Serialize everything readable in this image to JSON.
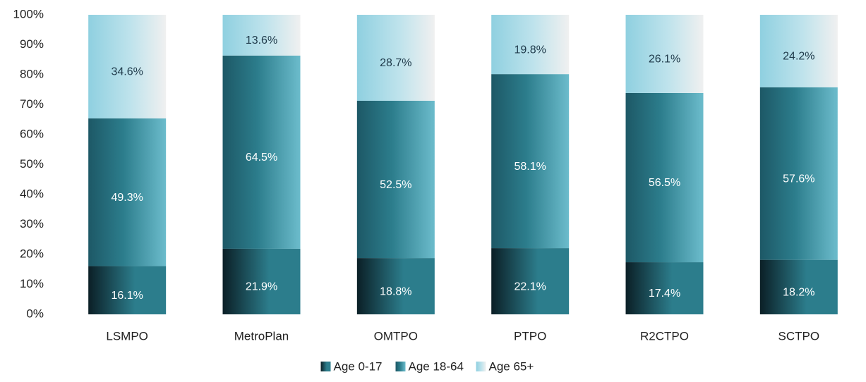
{
  "chart_data": {
    "type": "stacked_bar",
    "categories": [
      "LSMPO",
      "MetroPlan",
      "OMTPO",
      "PTPO",
      "R2CTPO",
      "SCTPO"
    ],
    "series": [
      {
        "name": "Age 0-17",
        "color": "#2c7d8c",
        "values": [
          16.1,
          21.9,
          18.8,
          22.1,
          17.4,
          18.2
        ],
        "value_labels": [
          "16.1%",
          "21.9%",
          "18.8%",
          "22.1%",
          "17.4%",
          "18.2%"
        ]
      },
      {
        "name": "Age 18-64",
        "color": "#6cbccc",
        "values": [
          49.3,
          64.5,
          52.5,
          58.1,
          56.5,
          57.6
        ],
        "value_labels": [
          "49.3%",
          "64.5%",
          "52.5%",
          "58.1%",
          "56.5%",
          "57.6%"
        ]
      },
      {
        "name": "Age 65+",
        "color": "#8fd0e0",
        "values": [
          34.6,
          13.6,
          28.7,
          19.8,
          26.1,
          24.2
        ],
        "value_labels": [
          "34.6%",
          "13.6%",
          "28.7%",
          "19.8%",
          "26.1%",
          "24.2%"
        ]
      }
    ],
    "ylim": [
      0,
      100
    ],
    "yticks": [
      {
        "value": 0,
        "label": "0%"
      },
      {
        "value": 10,
        "label": "10%"
      },
      {
        "value": 20,
        "label": "20%"
      },
      {
        "value": 30,
        "label": "30%"
      },
      {
        "value": 40,
        "label": "40%"
      },
      {
        "value": 50,
        "label": "50%"
      },
      {
        "value": 60,
        "label": "60%"
      },
      {
        "value": 70,
        "label": "70%"
      },
      {
        "value": 80,
        "label": "80%"
      },
      {
        "value": 90,
        "label": "90%"
      },
      {
        "value": 100,
        "label": "100%"
      }
    ],
    "legend": "bottom"
  }
}
